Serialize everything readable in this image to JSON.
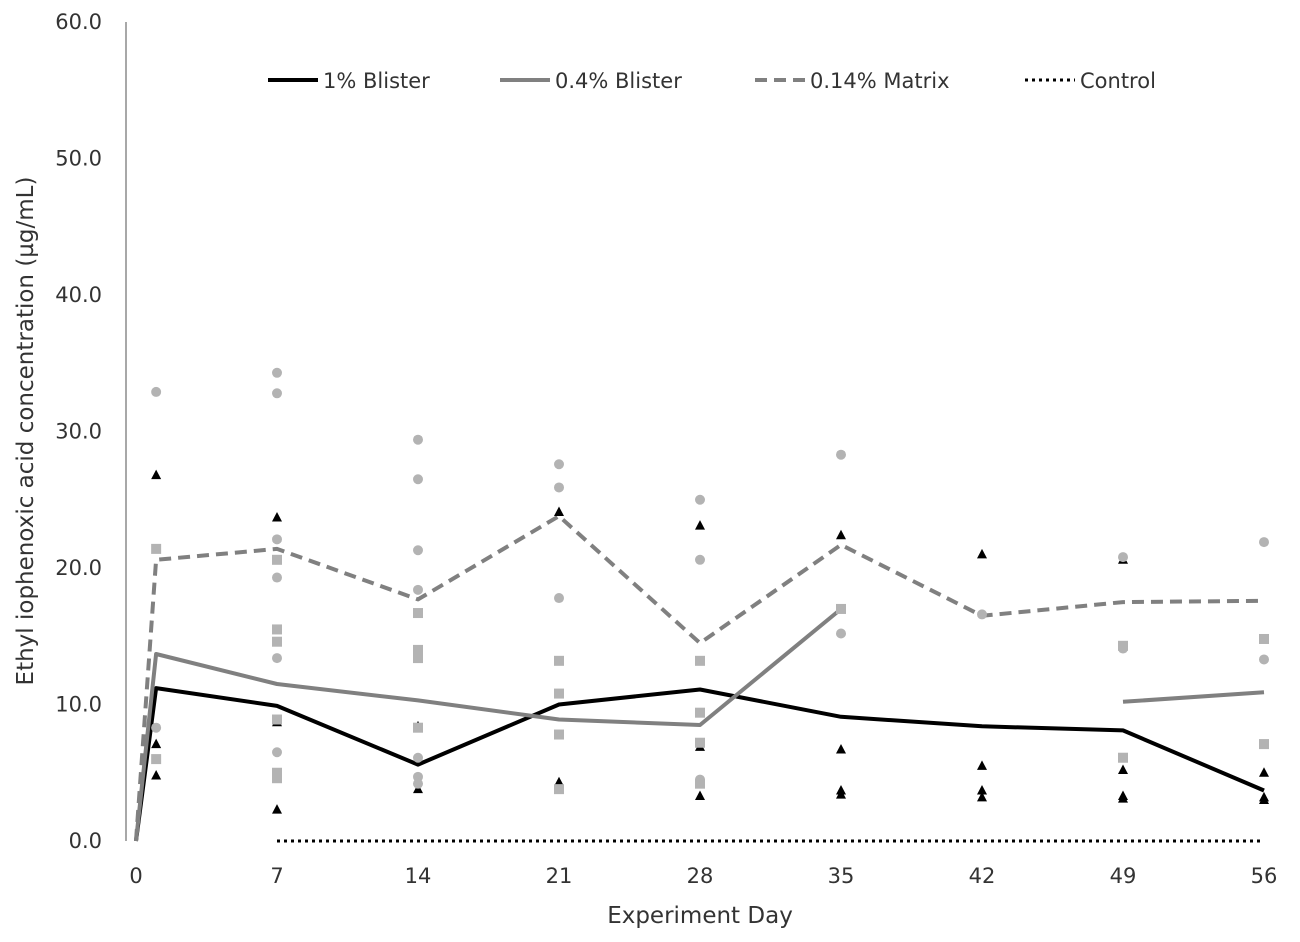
{
  "chart_data": {
    "type": "line",
    "title": "",
    "xlabel": "Experiment Day",
    "ylabel": "Ethyl iophenoxic acid concentration (µg/mL)",
    "xlim": [
      0,
      56
    ],
    "ylim": [
      0,
      60
    ],
    "x_ticks": [
      0,
      7,
      14,
      21,
      28,
      35,
      42,
      49,
      56
    ],
    "y_ticks": [
      0,
      10,
      20,
      30,
      40,
      50,
      60
    ],
    "y_tick_labels": [
      "0.0",
      "10.0",
      "20.0",
      "30.0",
      "40.0",
      "50.0",
      "60.0"
    ],
    "grid": false,
    "legend_position": "top",
    "series": [
      {
        "name": "1% Blister",
        "style": "solid",
        "color": "#000000",
        "width": 4,
        "segments": [
          [
            [
              0,
              0
            ],
            [
              1,
              11.2
            ],
            [
              7,
              9.9
            ],
            [
              14,
              5.6
            ],
            [
              21,
              10.0
            ],
            [
              28,
              11.1
            ],
            [
              35,
              9.1
            ],
            [
              42,
              8.4
            ],
            [
              49,
              8.1
            ],
            [
              56,
              3.7
            ]
          ]
        ]
      },
      {
        "name": "0.4% Blister",
        "style": "solid",
        "color": "#808080",
        "width": 4,
        "segments": [
          [
            [
              0,
              0
            ],
            [
              1,
              13.7
            ],
            [
              7,
              11.5
            ],
            [
              14,
              10.3
            ],
            [
              21,
              8.9
            ],
            [
              28,
              8.5
            ],
            [
              35,
              17.0
            ]
          ],
          [
            [
              49,
              10.2
            ],
            [
              56,
              10.9
            ]
          ]
        ]
      },
      {
        "name": "0.14% Matrix",
        "style": "dashed",
        "color": "#808080",
        "width": 4,
        "segments": [
          [
            [
              0,
              0
            ],
            [
              1,
              20.6
            ],
            [
              7,
              21.4
            ],
            [
              14,
              17.7
            ],
            [
              21,
              23.8
            ],
            [
              28,
              14.5
            ],
            [
              35,
              21.7
            ],
            [
              42,
              16.5
            ],
            [
              49,
              17.5
            ],
            [
              56,
              17.6
            ]
          ]
        ]
      },
      {
        "name": "Control",
        "style": "dotted",
        "color": "#000000",
        "width": 3,
        "segments": [
          [
            [
              7,
              0
            ],
            [
              56,
              0
            ]
          ]
        ]
      }
    ],
    "scatter": [
      {
        "marker": "triangle",
        "color": "#000000",
        "points": [
          [
            1,
            26.8
          ],
          [
            1,
            7.1
          ],
          [
            1,
            4.8
          ],
          [
            7,
            23.7
          ],
          [
            7,
            8.7
          ],
          [
            7,
            2.3
          ],
          [
            14,
            8.4
          ],
          [
            14,
            3.8
          ],
          [
            21,
            24.1
          ],
          [
            21,
            4.3
          ],
          [
            28,
            23.1
          ],
          [
            28,
            6.9
          ],
          [
            28,
            3.3
          ],
          [
            35,
            22.4
          ],
          [
            35,
            6.7
          ],
          [
            35,
            3.7
          ],
          [
            35,
            3.4
          ],
          [
            42,
            21.0
          ],
          [
            42,
            5.5
          ],
          [
            42,
            3.7
          ],
          [
            42,
            3.2
          ],
          [
            49,
            20.6
          ],
          [
            49,
            5.2
          ],
          [
            49,
            3.3
          ],
          [
            49,
            3.1
          ],
          [
            56,
            5.0
          ],
          [
            56,
            3.2
          ],
          [
            56,
            3.0
          ]
        ]
      },
      {
        "marker": "square",
        "color": "#b3b3b3",
        "points": [
          [
            1,
            21.4
          ],
          [
            1,
            6.0
          ],
          [
            7,
            20.6
          ],
          [
            7,
            15.5
          ],
          [
            7,
            14.6
          ],
          [
            7,
            8.9
          ],
          [
            7,
            5.0
          ],
          [
            7,
            4.6
          ],
          [
            14,
            16.7
          ],
          [
            14,
            14.0
          ],
          [
            14,
            13.4
          ],
          [
            14,
            8.3
          ],
          [
            21,
            13.2
          ],
          [
            21,
            10.8
          ],
          [
            21,
            7.8
          ],
          [
            21,
            3.8
          ],
          [
            28,
            13.2
          ],
          [
            28,
            9.4
          ],
          [
            28,
            7.2
          ],
          [
            28,
            4.2
          ],
          [
            35,
            17.0
          ],
          [
            49,
            14.3
          ],
          [
            49,
            6.1
          ],
          [
            56,
            14.8
          ],
          [
            56,
            7.1
          ]
        ]
      },
      {
        "marker": "circle",
        "color": "#b3b3b3",
        "points": [
          [
            1,
            32.9
          ],
          [
            1,
            8.3
          ],
          [
            7,
            34.3
          ],
          [
            7,
            32.8
          ],
          [
            7,
            22.1
          ],
          [
            7,
            19.3
          ],
          [
            7,
            13.4
          ],
          [
            7,
            6.5
          ],
          [
            14,
            29.4
          ],
          [
            14,
            26.5
          ],
          [
            14,
            21.3
          ],
          [
            14,
            18.4
          ],
          [
            14,
            6.1
          ],
          [
            14,
            4.7
          ],
          [
            14,
            4.2
          ],
          [
            21,
            27.6
          ],
          [
            21,
            25.9
          ],
          [
            21,
            17.8
          ],
          [
            28,
            25.0
          ],
          [
            28,
            20.6
          ],
          [
            28,
            4.5
          ],
          [
            35,
            28.3
          ],
          [
            35,
            15.2
          ],
          [
            42,
            16.6
          ],
          [
            49,
            20.8
          ],
          [
            49,
            14.1
          ],
          [
            56,
            21.9
          ],
          [
            56,
            13.3
          ]
        ]
      }
    ]
  }
}
